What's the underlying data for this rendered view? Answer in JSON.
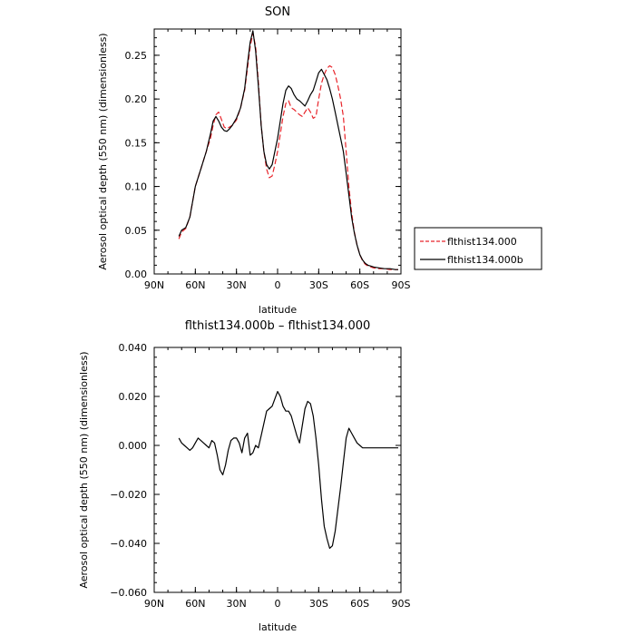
{
  "chart_data": [
    {
      "type": "line",
      "title": "SON",
      "xlabel": "latitude",
      "ylabel": "Aerosol optical depth (550 nm) (dimensionless)",
      "xlim": [
        -90,
        90
      ],
      "ylim": [
        0,
        0.28
      ],
      "x_tick_values": [
        -90,
        -60,
        -30,
        0,
        30,
        60,
        90
      ],
      "x_tick_labels": [
        "90N",
        "60N",
        "30N",
        "0",
        "30S",
        "60S",
        "90S"
      ],
      "y_tick_values": [
        0,
        0.05,
        0.1,
        0.15,
        0.2,
        0.25
      ],
      "y_tick_labels": [
        "0.00",
        "0.05",
        "0.10",
        "0.15",
        "0.20",
        "0.25"
      ],
      "legend": "outside-right",
      "series": [
        {
          "name": "flthist134.000",
          "color": "#e8242a",
          "dash": "dashed",
          "x": [
            -72,
            -70,
            -67,
            -64,
            -60,
            -56,
            -52,
            -49,
            -47,
            -45,
            -43,
            -41,
            -39,
            -37,
            -35,
            -33,
            -30,
            -27,
            -24,
            -22,
            -20,
            -18,
            -16,
            -14,
            -12,
            -10,
            -8,
            -6,
            -4,
            -2,
            0,
            2,
            4,
            6,
            8,
            10,
            12,
            14,
            16,
            18,
            20,
            22,
            24,
            26,
            28,
            30,
            32,
            34,
            36,
            38,
            40,
            42,
            44,
            46,
            48,
            50,
            52,
            54,
            56,
            58,
            60,
            62,
            64,
            66,
            68,
            70,
            74,
            78,
            82,
            86,
            88
          ],
          "y": [
            0.04,
            0.048,
            0.052,
            0.065,
            0.1,
            0.12,
            0.14,
            0.155,
            0.17,
            0.182,
            0.185,
            0.177,
            0.168,
            0.166,
            0.168,
            0.17,
            0.176,
            0.19,
            0.21,
            0.235,
            0.26,
            0.275,
            0.26,
            0.22,
            0.17,
            0.14,
            0.12,
            0.11,
            0.112,
            0.125,
            0.14,
            0.16,
            0.18,
            0.195,
            0.198,
            0.19,
            0.188,
            0.185,
            0.182,
            0.18,
            0.185,
            0.19,
            0.185,
            0.178,
            0.18,
            0.2,
            0.218,
            0.228,
            0.235,
            0.238,
            0.236,
            0.228,
            0.215,
            0.2,
            0.18,
            0.14,
            0.1,
            0.07,
            0.048,
            0.033,
            0.022,
            0.015,
            0.011,
            0.009,
            0.008,
            0.007,
            0.006,
            0.006,
            0.005,
            0.005,
            0.005
          ]
        },
        {
          "name": "flthist134.000b",
          "color": "#000000",
          "dash": "solid",
          "x": [
            -72,
            -70,
            -67,
            -64,
            -60,
            -56,
            -52,
            -49,
            -47,
            -45,
            -43,
            -41,
            -39,
            -37,
            -35,
            -33,
            -30,
            -27,
            -24,
            -22,
            -20,
            -18,
            -16,
            -14,
            -12,
            -10,
            -8,
            -6,
            -4,
            -2,
            0,
            2,
            4,
            6,
            8,
            10,
            12,
            14,
            16,
            18,
            20,
            22,
            24,
            26,
            28,
            30,
            32,
            34,
            36,
            38,
            40,
            42,
            44,
            46,
            48,
            50,
            52,
            54,
            56,
            58,
            60,
            62,
            64,
            66,
            68,
            70,
            74,
            78,
            82,
            86,
            88
          ],
          "y": [
            0.043,
            0.05,
            0.053,
            0.065,
            0.1,
            0.12,
            0.14,
            0.16,
            0.175,
            0.18,
            0.175,
            0.168,
            0.164,
            0.163,
            0.166,
            0.17,
            0.178,
            0.19,
            0.212,
            0.24,
            0.265,
            0.278,
            0.255,
            0.215,
            0.17,
            0.14,
            0.125,
            0.12,
            0.125,
            0.14,
            0.155,
            0.175,
            0.195,
            0.21,
            0.215,
            0.212,
            0.205,
            0.2,
            0.198,
            0.195,
            0.192,
            0.198,
            0.205,
            0.21,
            0.22,
            0.23,
            0.234,
            0.228,
            0.222,
            0.212,
            0.2,
            0.185,
            0.17,
            0.155,
            0.14,
            0.115,
            0.09,
            0.065,
            0.047,
            0.033,
            0.022,
            0.016,
            0.012,
            0.01,
            0.009,
            0.008,
            0.007,
            0.006,
            0.006,
            0.005,
            0.005
          ]
        }
      ]
    },
    {
      "type": "line",
      "title": "flthist134.000b – flthist134.000",
      "xlabel": "latitude",
      "ylabel": "Aerosol optical depth (550 nm) (dimensionless)",
      "xlim": [
        -90,
        90
      ],
      "ylim": [
        -0.06,
        0.04
      ],
      "x_tick_values": [
        -90,
        -60,
        -30,
        0,
        30,
        60,
        90
      ],
      "x_tick_labels": [
        "90N",
        "60N",
        "30N",
        "0",
        "30S",
        "60S",
        "90S"
      ],
      "y_tick_values": [
        -0.06,
        -0.04,
        -0.02,
        0,
        0.02,
        0.04
      ],
      "y_tick_labels": [
        "−0.060",
        "−0.040",
        "−0.020",
        "0.000",
        "0.020",
        "0.040"
      ],
      "series": [
        {
          "color": "#000000",
          "dash": "solid",
          "x": [
            -72,
            -70,
            -68,
            -66,
            -64,
            -62,
            -60,
            -58,
            -56,
            -54,
            -52,
            -50,
            -48,
            -46,
            -44,
            -42,
            -40,
            -38,
            -36,
            -34,
            -32,
            -30,
            -28,
            -26,
            -24,
            -22,
            -20,
            -18,
            -16,
            -14,
            -12,
            -10,
            -8,
            -6,
            -4,
            -2,
            0,
            2,
            4,
            6,
            8,
            10,
            12,
            14,
            16,
            18,
            20,
            22,
            24,
            26,
            28,
            30,
            32,
            34,
            36,
            38,
            40,
            42,
            44,
            46,
            48,
            50,
            52,
            54,
            56,
            58,
            60,
            62,
            64,
            66,
            68,
            70,
            74,
            78,
            82,
            86,
            88
          ],
          "y": [
            0.003,
            0.001,
            0.0,
            -0.001,
            -0.002,
            -0.001,
            0.001,
            0.003,
            0.002,
            0.001,
            0.0,
            -0.001,
            0.002,
            0.001,
            -0.004,
            -0.01,
            -0.012,
            -0.008,
            -0.002,
            0.002,
            0.003,
            0.003,
            0.001,
            -0.003,
            0.003,
            0.005,
            -0.004,
            -0.003,
            0.0,
            -0.001,
            0.004,
            0.009,
            0.014,
            0.015,
            0.016,
            0.019,
            0.022,
            0.02,
            0.016,
            0.014,
            0.014,
            0.012,
            0.008,
            0.004,
            0.001,
            0.008,
            0.015,
            0.018,
            0.017,
            0.012,
            0.003,
            -0.008,
            -0.022,
            -0.033,
            -0.038,
            -0.042,
            -0.041,
            -0.035,
            -0.026,
            -0.017,
            -0.007,
            0.003,
            0.007,
            0.005,
            0.003,
            0.001,
            0.0,
            -0.001,
            -0.001,
            -0.001,
            -0.001,
            -0.001,
            -0.001,
            -0.001,
            -0.001,
            -0.001,
            -0.001
          ]
        }
      ]
    }
  ]
}
